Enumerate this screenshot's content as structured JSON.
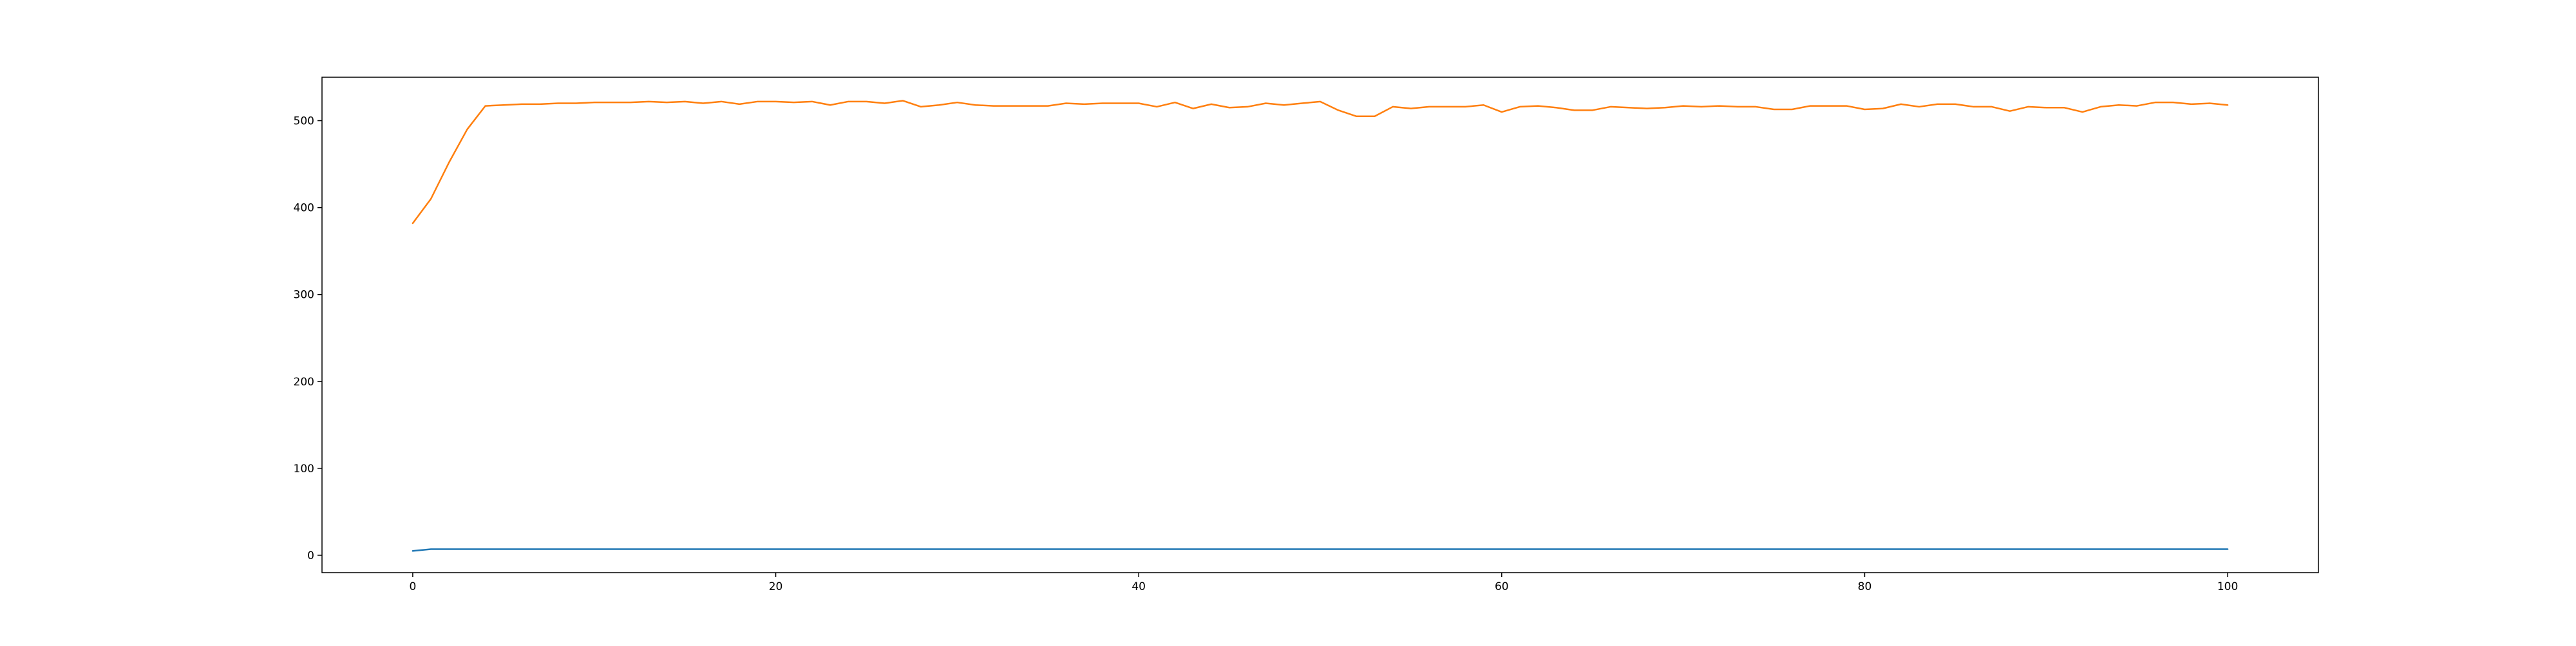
{
  "chart_data": {
    "type": "line",
    "title": "",
    "xlabel": "",
    "ylabel": "",
    "xlim": [
      -5,
      105
    ],
    "ylim": [
      -20,
      550
    ],
    "x_ticks": [
      0,
      20,
      40,
      60,
      80,
      100
    ],
    "y_ticks": [
      0,
      100,
      200,
      300,
      400,
      500
    ],
    "grid": false,
    "x": [
      0,
      1,
      2,
      3,
      4,
      5,
      6,
      7,
      8,
      9,
      10,
      11,
      12,
      13,
      14,
      15,
      16,
      17,
      18,
      19,
      20,
      21,
      22,
      23,
      24,
      25,
      26,
      27,
      28,
      29,
      30,
      31,
      32,
      33,
      34,
      35,
      36,
      37,
      38,
      39,
      40,
      41,
      42,
      43,
      44,
      45,
      46,
      47,
      48,
      49,
      50,
      51,
      52,
      53,
      54,
      55,
      56,
      57,
      58,
      59,
      60,
      61,
      62,
      63,
      64,
      65,
      66,
      67,
      68,
      69,
      70,
      71,
      72,
      73,
      74,
      75,
      76,
      77,
      78,
      79,
      80,
      81,
      82,
      83,
      84,
      85,
      86,
      87,
      88,
      89,
      90,
      91,
      92,
      93,
      94,
      95,
      96,
      97,
      98,
      99,
      100
    ],
    "series": [
      {
        "color": "#1f77b4",
        "values": [
          5,
          7,
          7,
          7,
          7,
          7,
          7,
          7,
          7,
          7,
          7,
          7,
          7,
          7,
          7,
          7,
          7,
          7,
          7,
          7,
          7,
          7,
          7,
          7,
          7,
          7,
          7,
          7,
          7,
          7,
          7,
          7,
          7,
          7,
          7,
          7,
          7,
          7,
          7,
          7,
          7,
          7,
          7,
          7,
          7,
          7,
          7,
          7,
          7,
          7,
          7,
          7,
          7,
          7,
          7,
          7,
          7,
          7,
          7,
          7,
          7,
          7,
          7,
          7,
          7,
          7,
          7,
          7,
          7,
          7,
          7,
          7,
          7,
          7,
          7,
          7,
          7,
          7,
          7,
          7,
          7,
          7,
          7,
          7,
          7,
          7,
          7,
          7,
          7,
          7,
          7,
          7,
          7,
          7,
          7,
          7,
          7,
          7,
          7,
          7,
          7
        ]
      },
      {
        "color": "#ff7f0e",
        "values": [
          382,
          410,
          452,
          490,
          517,
          518,
          519,
          519,
          520,
          520,
          521,
          521,
          521,
          522,
          521,
          522,
          520,
          522,
          519,
          522,
          522,
          521,
          522,
          518,
          522,
          522,
          520,
          523,
          516,
          518,
          521,
          518,
          517,
          517,
          517,
          517,
          520,
          519,
          520,
          520,
          520,
          516,
          521,
          514,
          519,
          515,
          516,
          520,
          518,
          520,
          522,
          512,
          505,
          505,
          516,
          514,
          516,
          516,
          516,
          518,
          510,
          516,
          517,
          515,
          512,
          512,
          516,
          515,
          514,
          515,
          517,
          516,
          517,
          516,
          516,
          513,
          513,
          517,
          517,
          517,
          513,
          514,
          519,
          516,
          519,
          519,
          516,
          516,
          511,
          516,
          515,
          515,
          510,
          516,
          518,
          517,
          521,
          521,
          519,
          520,
          518
        ]
      }
    ]
  }
}
